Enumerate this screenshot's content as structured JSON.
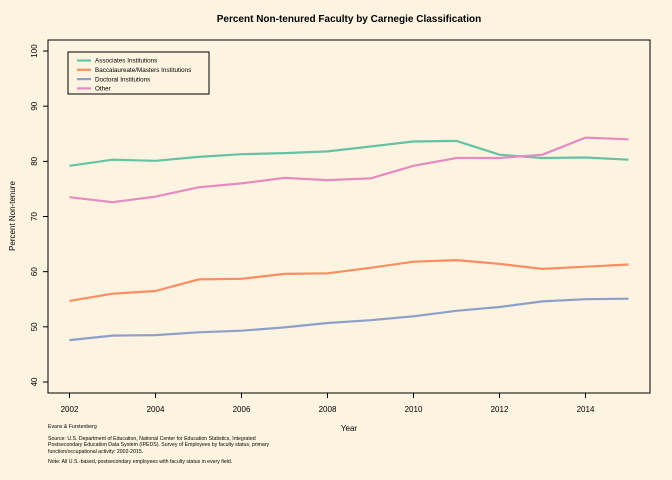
{
  "chart_data": {
    "type": "line",
    "title": "Percent Non-tenured Faculty by Carnegie Classification",
    "xlabel": "Year",
    "ylabel": "Percent Non-tenure",
    "xlim": [
      2001.5,
      2015.5
    ],
    "ylim": [
      38,
      102
    ],
    "xticks": [
      2002,
      2004,
      2006,
      2008,
      2010,
      2012,
      2014
    ],
    "yticks": [
      40,
      50,
      60,
      70,
      80,
      90,
      100
    ],
    "grid": false,
    "legend_position": "top-left",
    "x": [
      2002,
      2003,
      2004,
      2005,
      2006,
      2007,
      2008,
      2009,
      2010,
      2011,
      2012,
      2013,
      2014,
      2015
    ],
    "series": [
      {
        "name": "Associates Institutions",
        "color": "#66c2a5",
        "values": [
          79.2,
          80.3,
          80.1,
          80.8,
          81.3,
          81.5,
          81.8,
          82.7,
          83.6,
          83.7,
          81.2,
          80.6,
          80.7,
          80.3
        ]
      },
      {
        "name": "Baccalaureate/Masters Institutions",
        "color": "#fc8d62",
        "values": [
          54.7,
          56.0,
          56.5,
          58.6,
          58.7,
          59.6,
          59.7,
          60.7,
          61.8,
          62.1,
          61.4,
          60.5,
          60.9,
          61.3
        ]
      },
      {
        "name": "Doctoral Institutions",
        "color": "#8da0cb",
        "values": [
          47.6,
          48.4,
          48.5,
          49.0,
          49.3,
          49.9,
          50.7,
          51.2,
          51.9,
          52.9,
          53.6,
          54.6,
          55.0,
          55.1
        ]
      },
      {
        "name": "Other",
        "color": "#e78ac3",
        "values": [
          73.5,
          72.6,
          73.6,
          75.3,
          76.0,
          77.0,
          76.6,
          76.9,
          79.2,
          80.6,
          80.6,
          81.2,
          84.3,
          84.0
        ]
      }
    ]
  },
  "footer": {
    "credit": "Evans & Furstenberg",
    "source": "Source: U.S. Department of Education, National Center for Education Statistics, Integrated\n Postsecondary Education Data System (IPEDS).  Survey of Employees by faculty status, primary\n function/occupational activity: 2002-2015.",
    "note": "Note: All U.S.-based, postsecondary employees with faculty status in every field."
  }
}
